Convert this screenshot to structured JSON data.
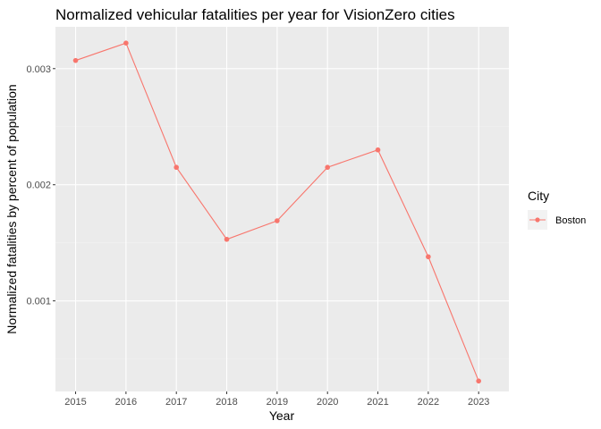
{
  "chart_data": {
    "type": "line",
    "title": "Normalized vehicular fatalities per year for VisionZero cities",
    "xlabel": "Year",
    "ylabel": "Normalized fatalities by percent of population",
    "x": [
      2015,
      2016,
      2017,
      2018,
      2019,
      2020,
      2021,
      2022,
      2023
    ],
    "series": [
      {
        "name": "Boston",
        "values": [
          0.00307,
          0.00322,
          0.00215,
          0.00153,
          0.00169,
          0.00215,
          0.0023,
          0.00138,
          0.00031
        ],
        "color": "#F8766D"
      }
    ],
    "ylim": [
      0.00022,
      0.00336
    ],
    "xlim": [
      2014.6,
      2023.6
    ],
    "y_ticks": [
      0.001,
      0.002,
      0.003
    ],
    "y_tick_labels": [
      "0.001",
      "0.002",
      "0.003"
    ],
    "x_tick_labels": [
      "2015",
      "2016",
      "2017",
      "2018",
      "2019",
      "2020",
      "2021",
      "2022",
      "2023"
    ],
    "grid": true,
    "legend": {
      "title": "City",
      "position": "right"
    },
    "colors": {
      "panel": "#EBEBEB",
      "grid_major": "#FFFFFF",
      "grid_minor": "#F2F2F2",
      "tick": "#333333"
    }
  }
}
